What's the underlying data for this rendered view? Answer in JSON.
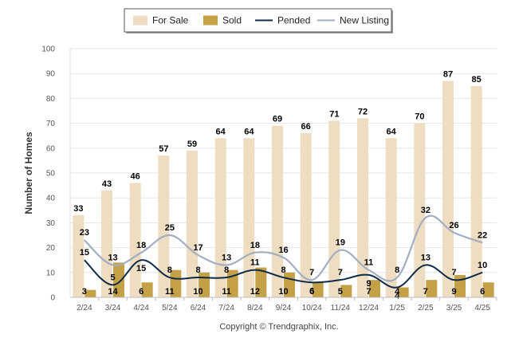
{
  "chart_data": {
    "type": "bar",
    "ylabel": "Number of Homes",
    "xlabel": "",
    "ylim": [
      0,
      100
    ],
    "yticks": [
      0,
      10,
      20,
      30,
      40,
      50,
      60,
      70,
      80,
      90,
      100
    ],
    "grid": true,
    "legend_position": "top-center",
    "categories": [
      "2/24",
      "3/24",
      "4/24",
      "5/24",
      "6/24",
      "7/24",
      "8/24",
      "9/24",
      "10/24",
      "11/24",
      "12/24",
      "1/25",
      "2/25",
      "3/25",
      "4/25"
    ],
    "series": [
      {
        "name": "For Sale",
        "kind": "bar",
        "color": "#eeddc0",
        "values": [
          33,
          43,
          46,
          57,
          59,
          64,
          64,
          69,
          66,
          71,
          72,
          64,
          70,
          87,
          85
        ]
      },
      {
        "name": "Sold",
        "kind": "bar",
        "color": "#c4a046",
        "values": [
          3,
          14,
          6,
          11,
          10,
          11,
          12,
          10,
          6,
          5,
          7,
          4,
          7,
          9,
          6
        ]
      },
      {
        "name": "Pended",
        "kind": "line",
        "color": "#0f2a48",
        "values": [
          15,
          5,
          15,
          8,
          8,
          8,
          11,
          8,
          6,
          7,
          9,
          4,
          13,
          7,
          10
        ]
      },
      {
        "name": "New Listing",
        "kind": "line",
        "color": "#a3aec2",
        "values": [
          23,
          13,
          18,
          25,
          17,
          13,
          18,
          16,
          7,
          19,
          11,
          8,
          32,
          26,
          22
        ]
      }
    ],
    "footer": "Copyright © Trendgraphix, Inc."
  }
}
